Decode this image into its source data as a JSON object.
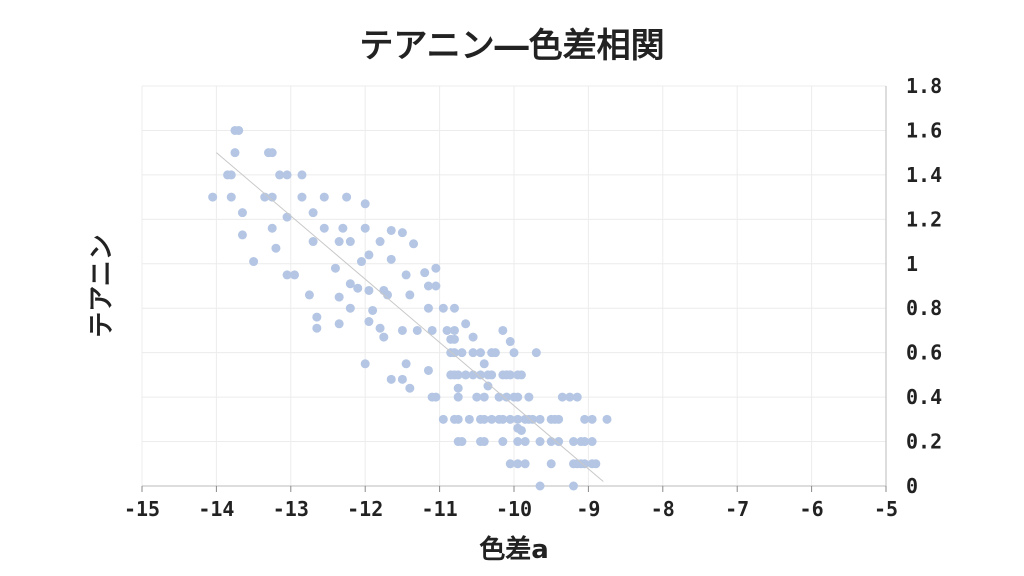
{
  "chart_data": {
    "type": "scatter",
    "title": "テアニン―色差相関",
    "xlabel": "色差a",
    "ylabel": "テアニン",
    "xlim": [
      -15,
      -5
    ],
    "ylim": [
      0,
      1.8
    ],
    "x_ticks": [
      "-15",
      "-14",
      "-13",
      "-12",
      "-11",
      "-10",
      "-9",
      "-8",
      "-7",
      "-6",
      "-5"
    ],
    "y_ticks": [
      "0",
      "0.2",
      "0.4",
      "0.6",
      "0.8",
      "1",
      "1.2",
      "1.4",
      "1.6",
      "1.8"
    ],
    "x_tick_values": [
      -15,
      -14,
      -13,
      -12,
      -11,
      -10,
      -9,
      -8,
      -7,
      -6,
      -5
    ],
    "y_tick_values": [
      0,
      0.2,
      0.4,
      0.6,
      0.8,
      1.0,
      1.2,
      1.4,
      1.6,
      1.8
    ],
    "grid": true,
    "y_axis_position": "right",
    "point_color": "#b4c6e4",
    "trendline_color": "#c8c8c8",
    "trendline": {
      "x": [
        -14.0,
        -8.8
      ],
      "y": [
        1.5,
        0.02
      ]
    },
    "points": [
      [
        -13.7,
        1.6
      ],
      [
        -13.75,
        1.6
      ],
      [
        -13.3,
        1.5
      ],
      [
        -13.25,
        1.5
      ],
      [
        -13.75,
        1.5
      ],
      [
        -13.85,
        1.4
      ],
      [
        -13.8,
        1.4
      ],
      [
        -13.15,
        1.4
      ],
      [
        -13.05,
        1.4
      ],
      [
        -12.85,
        1.4
      ],
      [
        -14.05,
        1.3
      ],
      [
        -13.8,
        1.3
      ],
      [
        -13.35,
        1.3
      ],
      [
        -13.25,
        1.3
      ],
      [
        -12.85,
        1.3
      ],
      [
        -12.55,
        1.3
      ],
      [
        -12.25,
        1.3
      ],
      [
        -13.65,
        1.23
      ],
      [
        -13.05,
        1.21
      ],
      [
        -12.7,
        1.23
      ],
      [
        -12.0,
        1.27
      ],
      [
        -13.25,
        1.16
      ],
      [
        -12.55,
        1.16
      ],
      [
        -12.3,
        1.16
      ],
      [
        -12.0,
        1.16
      ],
      [
        -11.65,
        1.15
      ],
      [
        -11.5,
        1.14
      ],
      [
        -13.65,
        1.13
      ],
      [
        -12.7,
        1.1
      ],
      [
        -12.35,
        1.1
      ],
      [
        -12.2,
        1.1
      ],
      [
        -11.8,
        1.1
      ],
      [
        -11.35,
        1.09
      ],
      [
        -13.2,
        1.07
      ],
      [
        -11.95,
        1.04
      ],
      [
        -11.65,
        1.02
      ],
      [
        -13.5,
        1.01
      ],
      [
        -12.05,
        1.01
      ],
      [
        -12.4,
        0.98
      ],
      [
        -11.05,
        0.98
      ],
      [
        -11.2,
        0.96
      ],
      [
        -11.45,
        0.95
      ],
      [
        -13.05,
        0.95
      ],
      [
        -12.95,
        0.95
      ],
      [
        -12.2,
        0.91
      ],
      [
        -11.15,
        0.9
      ],
      [
        -11.05,
        0.9
      ],
      [
        -12.1,
        0.89
      ],
      [
        -11.95,
        0.88
      ],
      [
        -11.75,
        0.88
      ],
      [
        -12.75,
        0.86
      ],
      [
        -12.35,
        0.85
      ],
      [
        -11.7,
        0.86
      ],
      [
        -11.4,
        0.86
      ],
      [
        -12.2,
        0.8
      ],
      [
        -11.9,
        0.79
      ],
      [
        -11.15,
        0.8
      ],
      [
        -10.95,
        0.8
      ],
      [
        -10.8,
        0.8
      ],
      [
        -12.65,
        0.76
      ],
      [
        -11.95,
        0.74
      ],
      [
        -11.8,
        0.71
      ],
      [
        -10.65,
        0.73
      ],
      [
        -12.65,
        0.71
      ],
      [
        -12.35,
        0.73
      ],
      [
        -11.5,
        0.7
      ],
      [
        -11.3,
        0.7
      ],
      [
        -11.1,
        0.7
      ],
      [
        -10.9,
        0.7
      ],
      [
        -10.8,
        0.7
      ],
      [
        -10.15,
        0.7
      ],
      [
        -11.75,
        0.67
      ],
      [
        -10.55,
        0.67
      ],
      [
        -10.05,
        0.65
      ],
      [
        -10.85,
        0.66
      ],
      [
        -10.8,
        0.66
      ],
      [
        -10.85,
        0.6
      ],
      [
        -10.8,
        0.6
      ],
      [
        -10.7,
        0.6
      ],
      [
        -10.55,
        0.6
      ],
      [
        -10.45,
        0.6
      ],
      [
        -10.3,
        0.6
      ],
      [
        -10.25,
        0.6
      ],
      [
        -10.0,
        0.6
      ],
      [
        -9.7,
        0.6
      ],
      [
        -12.0,
        0.55
      ],
      [
        -11.45,
        0.55
      ],
      [
        -10.4,
        0.55
      ],
      [
        -11.15,
        0.52
      ],
      [
        -10.85,
        0.5
      ],
      [
        -10.8,
        0.5
      ],
      [
        -10.75,
        0.5
      ],
      [
        -10.65,
        0.5
      ],
      [
        -10.55,
        0.5
      ],
      [
        -10.45,
        0.5
      ],
      [
        -10.35,
        0.5
      ],
      [
        -10.3,
        0.5
      ],
      [
        -10.15,
        0.5
      ],
      [
        -10.1,
        0.5
      ],
      [
        -10.05,
        0.5
      ],
      [
        -9.95,
        0.5
      ],
      [
        -9.9,
        0.5
      ],
      [
        -11.65,
        0.48
      ],
      [
        -11.5,
        0.48
      ],
      [
        -10.35,
        0.45
      ],
      [
        -11.4,
        0.44
      ],
      [
        -10.75,
        0.44
      ],
      [
        -11.1,
        0.4
      ],
      [
        -11.05,
        0.4
      ],
      [
        -10.75,
        0.4
      ],
      [
        -10.5,
        0.4
      ],
      [
        -10.4,
        0.4
      ],
      [
        -10.2,
        0.4
      ],
      [
        -10.1,
        0.4
      ],
      [
        -10.0,
        0.4
      ],
      [
        -9.95,
        0.4
      ],
      [
        -9.8,
        0.4
      ],
      [
        -9.35,
        0.4
      ],
      [
        -9.25,
        0.4
      ],
      [
        -9.15,
        0.4
      ],
      [
        -10.95,
        0.3
      ],
      [
        -10.8,
        0.3
      ],
      [
        -10.75,
        0.3
      ],
      [
        -10.6,
        0.3
      ],
      [
        -10.45,
        0.3
      ],
      [
        -10.4,
        0.3
      ],
      [
        -10.3,
        0.3
      ],
      [
        -10.2,
        0.3
      ],
      [
        -10.15,
        0.3
      ],
      [
        -10.05,
        0.3
      ],
      [
        -9.95,
        0.3
      ],
      [
        -9.85,
        0.3
      ],
      [
        -9.8,
        0.3
      ],
      [
        -9.75,
        0.3
      ],
      [
        -9.65,
        0.3
      ],
      [
        -9.5,
        0.3
      ],
      [
        -9.45,
        0.3
      ],
      [
        -9.4,
        0.3
      ],
      [
        -9.05,
        0.3
      ],
      [
        -8.95,
        0.3
      ],
      [
        -8.75,
        0.3
      ],
      [
        -9.95,
        0.26
      ],
      [
        -9.9,
        0.25
      ],
      [
        -10.75,
        0.2
      ],
      [
        -10.7,
        0.2
      ],
      [
        -10.45,
        0.2
      ],
      [
        -10.4,
        0.2
      ],
      [
        -10.15,
        0.2
      ],
      [
        -9.95,
        0.2
      ],
      [
        -9.85,
        0.2
      ],
      [
        -9.65,
        0.2
      ],
      [
        -9.5,
        0.2
      ],
      [
        -9.4,
        0.2
      ],
      [
        -9.2,
        0.2
      ],
      [
        -9.1,
        0.2
      ],
      [
        -9.05,
        0.2
      ],
      [
        -8.95,
        0.2
      ],
      [
        -10.05,
        0.1
      ],
      [
        -9.95,
        0.1
      ],
      [
        -9.85,
        0.1
      ],
      [
        -9.5,
        0.1
      ],
      [
        -9.2,
        0.1
      ],
      [
        -9.15,
        0.1
      ],
      [
        -9.1,
        0.1
      ],
      [
        -9.05,
        0.1
      ],
      [
        -8.95,
        0.1
      ],
      [
        -8.9,
        0.1
      ],
      [
        -9.65,
        0.0
      ],
      [
        -9.2,
        0.0
      ]
    ]
  }
}
